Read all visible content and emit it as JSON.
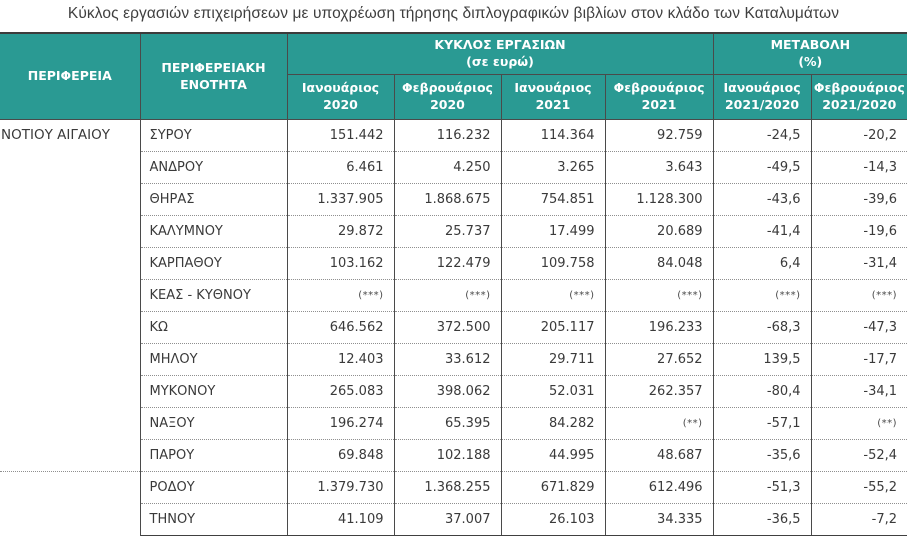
{
  "title": "Κύκλος εργασιών επιχειρήσεων με υποχρέωση τήρησης διπλογραφικών βιβλίων στον κλάδο των Καταλυμάτων",
  "colors": {
    "header_bg": "#2a9a93",
    "header_text": "#ffffff",
    "body_text": "#3a3a3a",
    "grid_dark": "#4a4a4a",
    "grid_dotted": "#8f8f8f"
  },
  "table": {
    "region_header": "ΠΕΡΙΦΕΡΕΙΑ",
    "unit_header": "ΠΕΡΙΦΕΡΕΙΑΚΗ ΕΝΟΤΗΤΑ",
    "group1": {
      "line1": "ΚΥΚΛΟΣ ΕΡΓΑΣΙΩΝ",
      "line2": "(σε ευρώ)"
    },
    "group2": {
      "line1": "ΜΕΤΑΒΟΛΗ",
      "line2": "(%)"
    },
    "subheaders": [
      {
        "line1": "Ιανουάριος",
        "line2": "2020"
      },
      {
        "line1": "Φεβρουάριος",
        "line2": "2020"
      },
      {
        "line1": "Ιανουάριος",
        "line2": "2021"
      },
      {
        "line1": "Φεβρουάριος",
        "line2": "2021"
      },
      {
        "line1": "Ιανουάριος",
        "line2": "2021/2020"
      },
      {
        "line1": "Φεβρουάριος",
        "line2": "2021/2020"
      }
    ],
    "region": "ΝΟΤΙΟΥ ΑΙΓΑΙΟΥ",
    "region_span_first": 11,
    "region_span_second": 2,
    "rows": [
      {
        "unit": "ΣΥΡΟΥ",
        "values": [
          "151.442",
          "116.232",
          "114.364",
          "92.759",
          "-24,5",
          "-20,2"
        ]
      },
      {
        "unit": "ΑΝΔΡΟΥ",
        "values": [
          "6.461",
          "4.250",
          "3.265",
          "3.643",
          "-49,5",
          "-14,3"
        ]
      },
      {
        "unit": "ΘΗΡΑΣ",
        "values": [
          "1.337.905",
          "1.868.675",
          "754.851",
          "1.128.300",
          "-43,6",
          "-39,6"
        ]
      },
      {
        "unit": "ΚΑΛΥΜΝΟΥ",
        "values": [
          "29.872",
          "25.737",
          "17.499",
          "20.689",
          "-41,4",
          "-19,6"
        ]
      },
      {
        "unit": "ΚΑΡΠΑΘΟΥ",
        "values": [
          "103.162",
          "122.479",
          "109.758",
          "84.048",
          "6,4",
          "-31,4"
        ]
      },
      {
        "unit": "ΚΕΑΣ - ΚΥΘΝΟΥ",
        "values": [
          "(***)",
          "(***)",
          "(***)",
          "(***)",
          "(***)",
          "(***)"
        ]
      },
      {
        "unit": "ΚΩ",
        "values": [
          "646.562",
          "372.500",
          "205.117",
          "196.233",
          "-68,3",
          "-47,3"
        ]
      },
      {
        "unit": "ΜΗΛΟΥ",
        "values": [
          "12.403",
          "33.612",
          "29.711",
          "27.652",
          "139,5",
          "-17,7"
        ]
      },
      {
        "unit": "ΜΥΚΟΝΟΥ",
        "values": [
          "265.083",
          "398.062",
          "52.031",
          "262.357",
          "-80,4",
          "-34,1"
        ]
      },
      {
        "unit": "ΝΑΞΟΥ",
        "values": [
          "196.274",
          "65.395",
          "84.282",
          "(**)",
          "-57,1",
          "(**)"
        ]
      },
      {
        "unit": "ΠΑΡΟΥ",
        "values": [
          "69.848",
          "102.188",
          "44.995",
          "48.687",
          "-35,6",
          "-52,4"
        ]
      },
      {
        "unit": "ΡΟΔΟΥ",
        "values": [
          "1.379.730",
          "1.368.255",
          "671.829",
          "612.496",
          "-51,3",
          "-55,2"
        ]
      },
      {
        "unit": "ΤΗΝΟΥ",
        "values": [
          "41.109",
          "37.007",
          "26.103",
          "34.335",
          "-36,5",
          "-7,2"
        ]
      }
    ]
  }
}
